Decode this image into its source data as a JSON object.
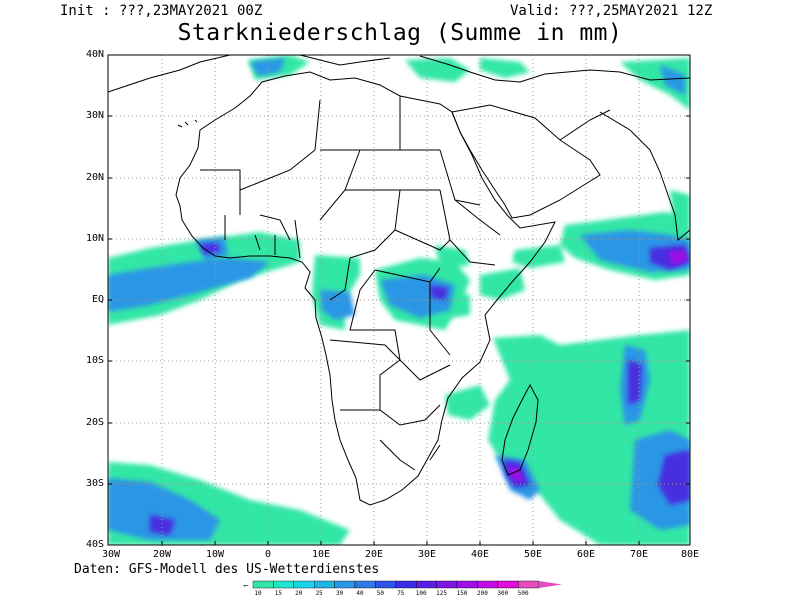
{
  "header": {
    "init": "Init : ???,23MAY2021 00Z",
    "valid": "Valid: ???,25MAY2021 12Z",
    "title": "Starkniederschlag (Summe in mm)"
  },
  "map": {
    "lat_labels": [
      "40N",
      "30N",
      "20N",
      "10N",
      "EQ",
      "10S",
      "20S",
      "30S",
      "40S"
    ],
    "lon_labels": [
      "30W",
      "20W",
      "10W",
      "0",
      "10E",
      "20E",
      "30E",
      "40E",
      "50E",
      "60E",
      "70E",
      "80E"
    ],
    "credit": "Daten: GFS-Modell des US-Wetterdienstes"
  },
  "legend": {
    "levels": [
      "10",
      "15",
      "20",
      "25",
      "30",
      "40",
      "50",
      "75",
      "100",
      "125",
      "150",
      "200",
      "300",
      "500"
    ],
    "colors": [
      "#33e6a6",
      "#1ee6cc",
      "#19d3e6",
      "#21b5e6",
      "#2a96e6",
      "#2f78e6",
      "#2f55e6",
      "#3a2fe6",
      "#5a1fe6",
      "#7d16e6",
      "#9e10e6",
      "#c20ee6",
      "#e00ed6",
      "#e64cc0"
    ]
  }
}
